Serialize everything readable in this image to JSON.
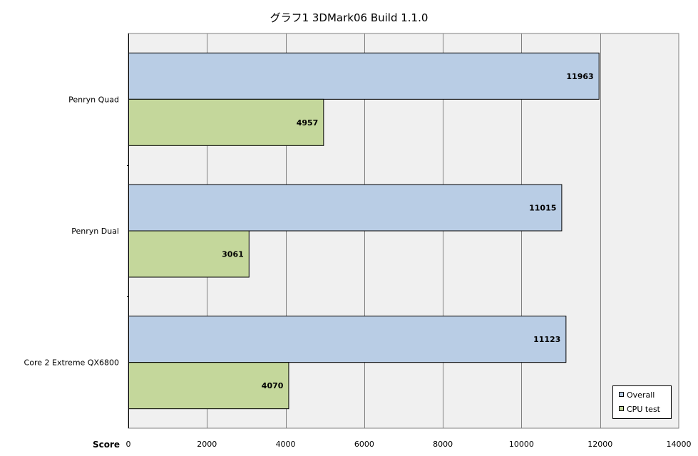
{
  "chart_data": {
    "type": "bar",
    "orientation": "horizontal",
    "title": "グラフ1  3DMark06 Build 1.1.0",
    "xlabel": "Score",
    "ylabel": "",
    "categories": [
      "Penryn Quad",
      "Penryn Dual",
      "Core 2 Extreme QX6800"
    ],
    "series": [
      {
        "name": "Overall",
        "values": [
          11963,
          11015,
          11123
        ],
        "color": "#b9cde5"
      },
      {
        "name": "CPU test",
        "values": [
          4957,
          3061,
          4070
        ],
        "color": "#c4d79b"
      }
    ],
    "xlim": [
      0,
      14000
    ],
    "ticks": [
      0,
      2000,
      4000,
      6000,
      8000,
      10000,
      12000,
      14000
    ],
    "tick_labels": [
      "0",
      "2000",
      "4000",
      "6000",
      "8000",
      "10000",
      "12000",
      "14000"
    ],
    "value_labels": [
      [
        "11963",
        "11015",
        "11123"
      ],
      [
        "4957",
        "3061",
        "4070"
      ]
    ],
    "grid": true,
    "plot_background": "#f0f0f0",
    "legend_position": "bottom-right"
  }
}
